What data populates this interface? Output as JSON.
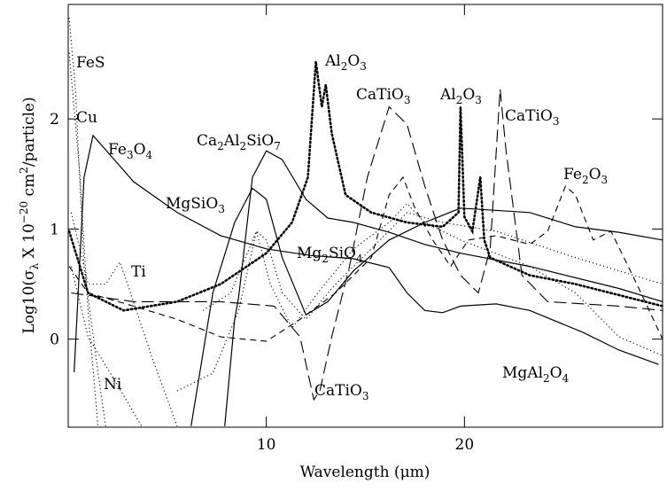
{
  "chart_data": {
    "type": "line",
    "xlabel": "Wavelength (μm)",
    "ylabel": "Log10(σλ X 10−20 cm2/particle)",
    "xlim": [
      0,
      30
    ],
    "ylim": [
      -0.8,
      3.04
    ],
    "xticks": [
      10,
      20
    ],
    "yticks": [
      0,
      1,
      2
    ],
    "series": [
      {
        "style": "solid",
        "color": "#000",
        "x": [
          0.3,
          0.8,
          1.25,
          3.3,
          5.5,
          7.7,
          10,
          12.2,
          14.4,
          16.2,
          17.1,
          18,
          18.9,
          19.8,
          21.6,
          23.3,
          26,
          27.8,
          29.8
        ],
        "values": [
          -0.3,
          1.47,
          1.85,
          1.43,
          1.15,
          0.94,
          0.82,
          0.76,
          0.73,
          0.65,
          0.42,
          0.26,
          0.24,
          0.3,
          0.32,
          0.26,
          0.06,
          -0.1,
          -0.23
        ]
      },
      {
        "style": "solid",
        "color": "#000",
        "x": [
          6.2,
          7.3,
          8.4,
          9.3,
          10,
          10.8,
          12,
          13.1,
          14.4,
          16.2,
          18,
          19.8,
          23.3,
          25.6,
          27.8,
          30
        ],
        "values": [
          -0.79,
          0.42,
          1.06,
          1.37,
          1.27,
          0.74,
          0.22,
          0.34,
          0.62,
          0.9,
          1.06,
          1.19,
          1.15,
          1.02,
          0.97,
          0.9
        ]
      },
      {
        "style": "solid",
        "color": "#000",
        "x": [
          7.9,
          8.4,
          8.6,
          9.3,
          10,
          10.8,
          12,
          13.1,
          14.4,
          16.2,
          18,
          19.8,
          23.3,
          27.8,
          30
        ],
        "values": [
          -0.79,
          0.18,
          0.38,
          1.47,
          1.71,
          1.63,
          1.27,
          1.1,
          1.06,
          0.97,
          0.86,
          0.78,
          0.66,
          0.46,
          0.34
        ]
      },
      {
        "style": "dotted",
        "color": "#000",
        "x": [
          0.05,
          0.36,
          0.8,
          1.5,
          1.9
        ],
        "values": [
          2.92,
          2.27,
          0.66,
          -0.3,
          -0.8
        ]
      },
      {
        "style": "dotted",
        "color": "#000",
        "x": [
          0.05,
          0.6,
          1.0,
          1.5
        ],
        "values": [
          2.6,
          1.47,
          0.26,
          -0.79
        ]
      },
      {
        "style": "dotted",
        "color": "#000",
        "x": [
          0.15,
          1.0,
          1.9,
          2.6,
          3.0,
          4.2,
          5.5
        ],
        "values": [
          1.15,
          0.5,
          0.5,
          0.7,
          0.5,
          -0.15,
          -0.79
        ]
      },
      {
        "style": "dotted",
        "color": "#000",
        "x": [
          0.15,
          1.0,
          2.4,
          3.7
        ],
        "values": [
          0.66,
          0.02,
          -0.39,
          -0.79
        ]
      },
      {
        "style": "heavydot",
        "color": "#000",
        "x": [
          0.05,
          1,
          2.8,
          5.5,
          7.7,
          10,
          11.3,
          12.1,
          12.5,
          12.8,
          13,
          13.3,
          14,
          15.3,
          17.1,
          18.9,
          19.7,
          19.8,
          20,
          20.4,
          20.8,
          21,
          21.3,
          23.3,
          25.6,
          30
        ],
        "values": [
          0.98,
          0.42,
          0.26,
          0.34,
          0.5,
          0.78,
          1.06,
          1.47,
          2.52,
          2.11,
          2.31,
          1.87,
          1.31,
          1.15,
          1.06,
          1.02,
          1.15,
          2.11,
          1.11,
          0.98,
          1.47,
          0.9,
          0.74,
          0.58,
          0.5,
          0.3
        ]
      },
      {
        "style": "longdash",
        "color": "#000",
        "x": [
          0.15,
          3.3,
          7.7,
          10.4,
          11.7,
          12.4,
          12.7,
          13.3,
          14.2,
          15.1,
          16.2,
          17.1,
          18,
          18.9,
          19.8,
          20.7,
          21.3,
          21.8,
          22.1,
          22.9,
          24.2,
          27.8,
          30
        ],
        "values": [
          0.42,
          0.34,
          0.34,
          0.3,
          0.02,
          -0.55,
          -0.47,
          0.02,
          0.66,
          1.47,
          2.11,
          1.95,
          1.39,
          0.9,
          0.58,
          0.42,
          0.82,
          2.27,
          1.71,
          0.58,
          0.34,
          0.3,
          0.26
        ]
      },
      {
        "style": "dashed",
        "color": "#000",
        "x": [
          0.05,
          1,
          3.3,
          5.5,
          7.7,
          10,
          11.7,
          13.5,
          15.3,
          16.2,
          16.9,
          17.5,
          18.4,
          19.3,
          20.2,
          21.6,
          23.3,
          24.2,
          25.1,
          25.6,
          26.5,
          27.4,
          28.7,
          30
        ],
        "values": [
          0.66,
          0.42,
          0.3,
          0.18,
          0.02,
          -0.02,
          0.18,
          0.42,
          0.74,
          1.31,
          1.47,
          1.19,
          0.9,
          0.66,
          0.9,
          0.94,
          0.86,
          0.98,
          1.39,
          1.31,
          0.9,
          0.98,
          0.5,
          0
        ]
      },
      {
        "style": "dotted",
        "color": "#000",
        "x": [
          6.8,
          8.2,
          9.5,
          10.2,
          11.3,
          12.6,
          14.4,
          16.2,
          17.1,
          18,
          19.8,
          23.3,
          25.6,
          27.8,
          30
        ],
        "values": [
          0.26,
          0.42,
          0.98,
          0.5,
          0.1,
          0.42,
          0.82,
          1.06,
          1.23,
          1.06,
          0.9,
          0.66,
          0.42,
          0.02,
          -0.15
        ]
      },
      {
        "style": "dotted",
        "color": "#000",
        "x": [
          5.5,
          7.3,
          8.6,
          9.5,
          10,
          10.8,
          12,
          13.5,
          15.3,
          17.1,
          18.9,
          21.6,
          25.6,
          30
        ],
        "values": [
          -0.47,
          -0.31,
          0.26,
          0.98,
          0.9,
          0.42,
          0.18,
          0.5,
          0.82,
          1.15,
          1.06,
          0.98,
          0.74,
          0.5
        ]
      }
    ],
    "annotations": [
      "FeS",
      "Cu",
      "Fe3O4",
      "Ti",
      "Ni",
      "MgSiO3",
      "Ca2Al2SiO7",
      "Al2O3",
      "CaTiO3",
      "Al2O3",
      "CaTiO3",
      "Mg2SiO4",
      "Fe2O3",
      "MgAl2O4",
      "CaTiO3"
    ]
  }
}
